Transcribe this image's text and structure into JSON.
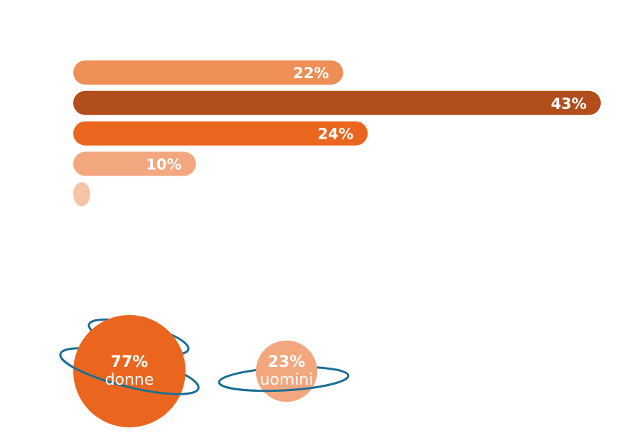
{
  "chart_data": [
    {
      "type": "bar",
      "orientation": "horizontal",
      "values": [
        22,
        43,
        24,
        10,
        1
      ],
      "labels": [
        "22%",
        "43%",
        "24%",
        "10%",
        ""
      ],
      "colors": [
        "#EE8F56",
        "#B24E1C",
        "#EA661F",
        "#F2A77E",
        "#F6C3A5"
      ],
      "xlim": [
        0,
        43
      ],
      "grid": false
    },
    {
      "type": "bubble",
      "items": [
        {
          "pct_label": "77%",
          "name": "donne",
          "value": 77,
          "color": "#EA661F"
        },
        {
          "pct_label": "23%",
          "name": "uomini",
          "value": 23,
          "color": "#F2A77E"
        }
      ],
      "ring_color": "#1C6E96"
    }
  ]
}
